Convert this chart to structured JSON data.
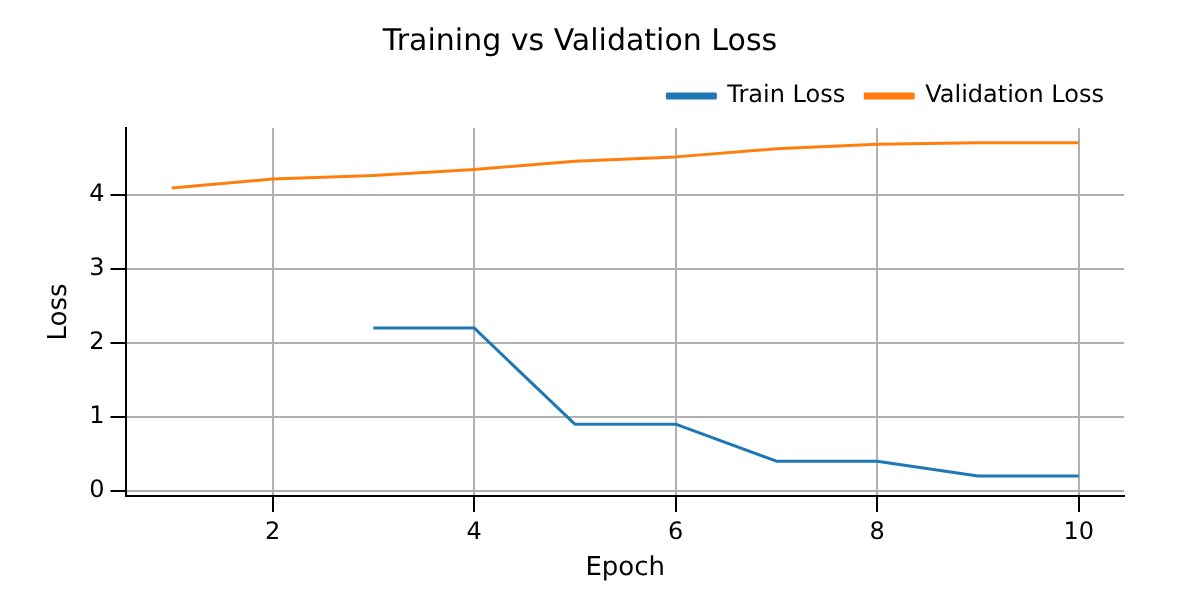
{
  "chart_data": {
    "type": "line",
    "title": "Training vs Validation Loss",
    "xlabel": "Epoch",
    "ylabel": "Loss",
    "x": [
      1,
      2,
      3,
      4,
      5,
      6,
      7,
      8,
      9,
      10
    ],
    "series": [
      {
        "name": "Train Loss",
        "color": "#1f77b4",
        "values": [
          null,
          null,
          2.2,
          2.2,
          0.9,
          0.9,
          0.4,
          0.4,
          0.2,
          0.2
        ]
      },
      {
        "name": "Validation Loss",
        "color": "#ff7f0e",
        "values": [
          4.09,
          4.21,
          4.26,
          4.34,
          4.45,
          4.51,
          4.62,
          4.68,
          4.7,
          4.7
        ]
      }
    ],
    "xlim": [
      0.55,
      10.45
    ],
    "ylim": [
      -0.07,
      4.9
    ],
    "xticks": [
      2,
      4,
      6,
      8,
      10
    ],
    "yticks": [
      0,
      1,
      2,
      3,
      4
    ],
    "grid": true,
    "legend": "top right",
    "marker": "none",
    "line_style": "solid"
  }
}
